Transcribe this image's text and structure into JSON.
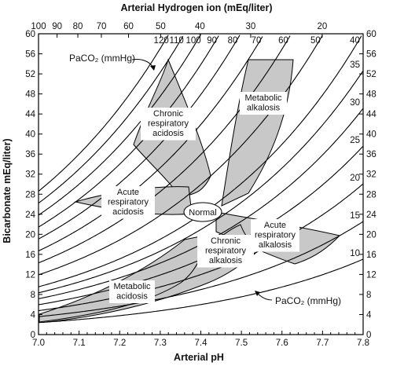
{
  "chart_data": {
    "type": "diagram",
    "title_top": "Arterial Hydrogen ion (mEq/liter)",
    "xlabel": "Arterial pH",
    "ylabel": "Bicarbonate mEq/liter)",
    "x_ticks": [
      "7.0",
      "7.1",
      "7.2",
      "7.3",
      "7.4",
      "7.5",
      "7.6",
      "7.7",
      "7.8"
    ],
    "y_ticks": [
      "0",
      "4",
      "8",
      "12",
      "16",
      "20",
      "24",
      "28",
      "32",
      "36",
      "40",
      "44",
      "48",
      "52",
      "56",
      "60"
    ],
    "h_ticks": [
      "100",
      "90",
      "80",
      "70",
      "60",
      "50",
      "40",
      "30",
      "20"
    ],
    "h_tick_values": [
      100,
      90,
      80,
      70,
      60,
      50,
      40,
      30,
      20
    ],
    "xlim": [
      7.0,
      7.8
    ],
    "ylim": [
      0,
      60
    ],
    "isobar_label_top": "PaCO₂ (mmHg)",
    "isobar_label_bottom": "PaCO₂ (mmHg)",
    "pco2_top_labels": [
      "120",
      "110",
      "100",
      "90",
      "80",
      "70",
      "60",
      "50",
      "40"
    ],
    "pco2_top_values": [
      120,
      110,
      100,
      90,
      80,
      70,
      60,
      50,
      40
    ],
    "pco2_right_labels": [
      "35",
      "30",
      "25",
      "20",
      "15",
      "10"
    ],
    "pco2_right_values": [
      35,
      30,
      25,
      20,
      15,
      10
    ],
    "regions": [
      {
        "key": "chronic_resp_acidosis",
        "lines": [
          "Chronic",
          "respiratory",
          "acidosis"
        ]
      },
      {
        "key": "metabolic_alkalosis",
        "lines": [
          "Metabolic",
          "alkalosis"
        ]
      },
      {
        "key": "acute_resp_acidosis",
        "lines": [
          "Acute",
          "respiratory",
          "acidosis"
        ]
      },
      {
        "key": "normal",
        "lines": [
          "Normal"
        ]
      },
      {
        "key": "acute_resp_alkalosis",
        "lines": [
          "Acute",
          "respiratory",
          "alkalosis"
        ]
      },
      {
        "key": "chronic_resp_alkalosis",
        "lines": [
          "Chronic",
          "respiratory",
          "alkalosis"
        ]
      },
      {
        "key": "metabolic_acidosis",
        "lines": [
          "Metabolic",
          "acidosis"
        ]
      }
    ]
  }
}
